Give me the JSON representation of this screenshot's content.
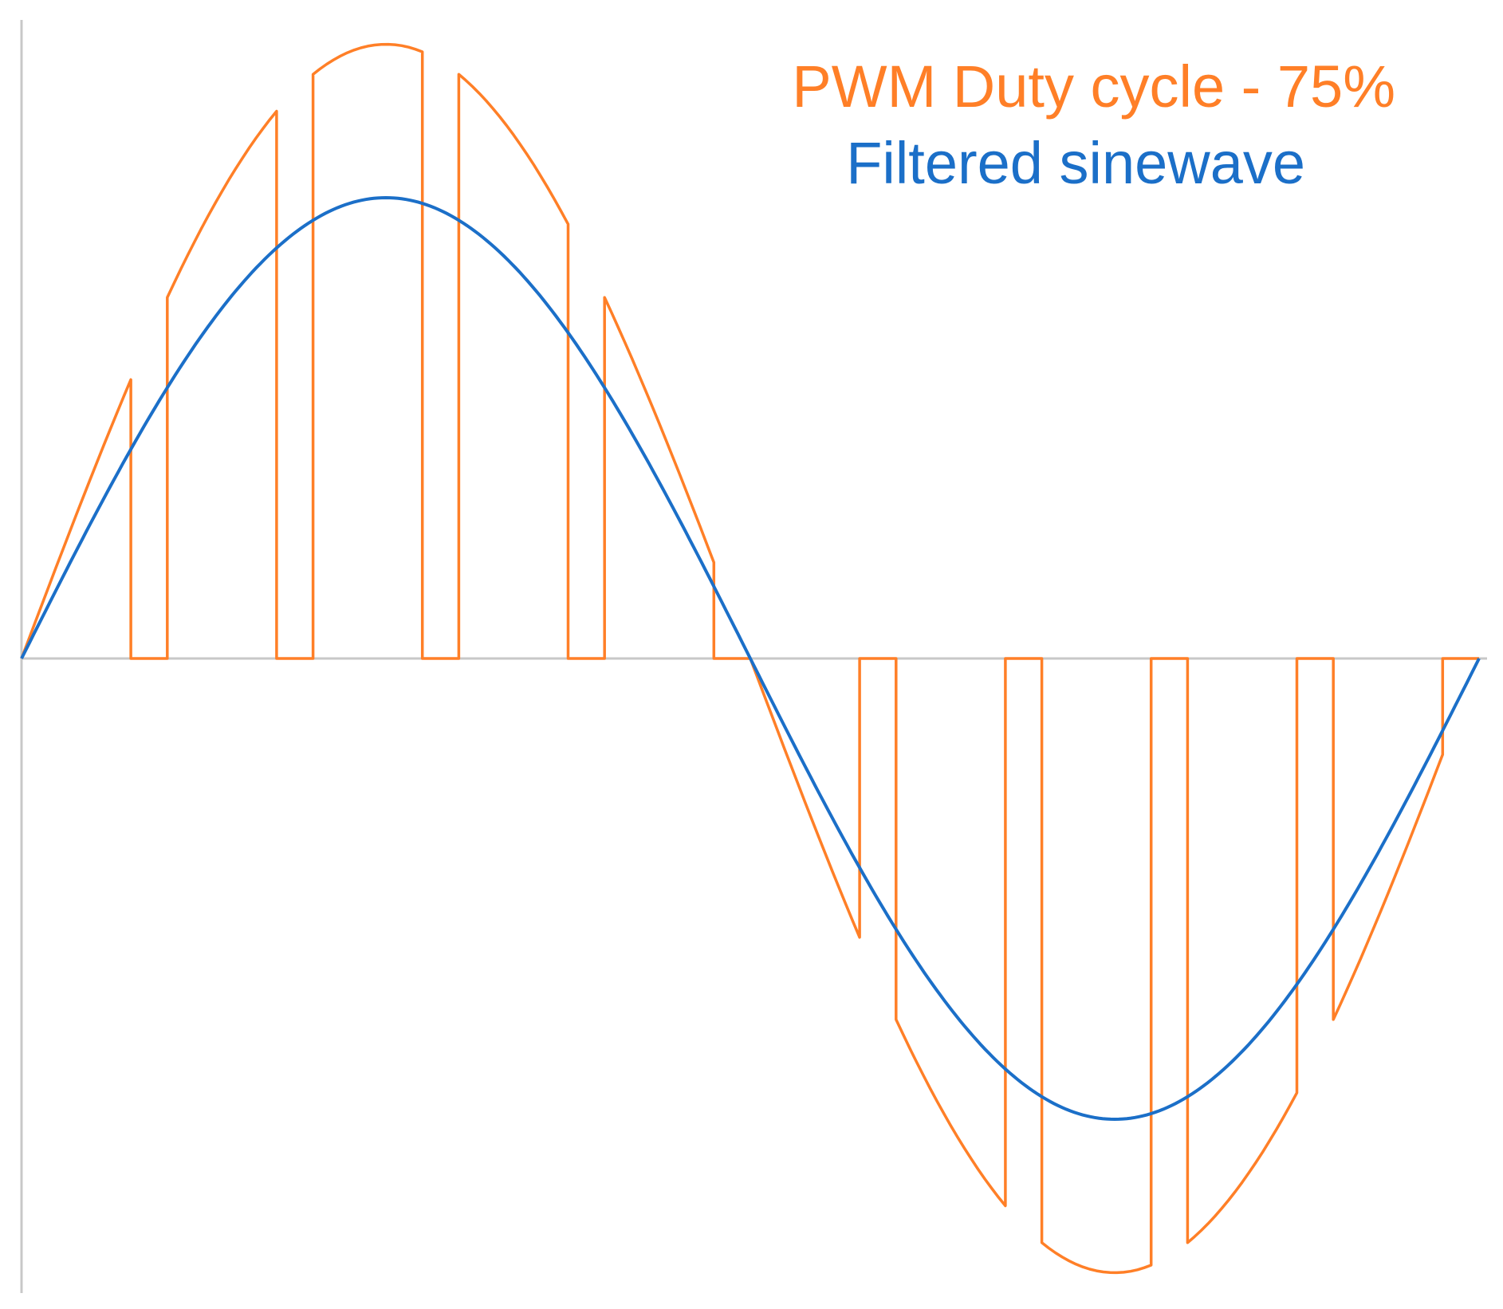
{
  "chart_data": {
    "type": "line",
    "title": "",
    "xlabel": "",
    "ylabel": "",
    "grid": false,
    "legend_position": "top-right",
    "x_range": [
      0,
      360
    ],
    "y_range": [
      -1.3,
      1.3
    ],
    "legend": [
      {
        "label": "PWM Duty cycle - 75%",
        "series": "pwm"
      },
      {
        "label": "Filtered sinewave",
        "series": "sine"
      }
    ],
    "series": [
      {
        "key": "sine",
        "color": "#1b6fc8",
        "x": [
          0,
          15,
          30,
          45,
          60,
          75,
          90,
          105,
          120,
          135,
          150,
          165,
          180,
          195,
          210,
          225,
          240,
          255,
          270,
          285,
          300,
          315,
          330,
          345,
          360
        ],
        "y": [
          0,
          0.259,
          0.5,
          0.707,
          0.866,
          0.966,
          1.0,
          0.966,
          0.866,
          0.707,
          0.5,
          0.259,
          0,
          -0.259,
          -0.5,
          -0.707,
          -0.866,
          -0.966,
          -1.0,
          -0.966,
          -0.866,
          -0.707,
          -0.5,
          -0.259,
          0
        ]
      },
      {
        "key": "pwm",
        "color": "#ff7f27",
        "amplitude": 1.333,
        "pulse_period": 36,
        "duty_cycle": 0.75,
        "pulses": 10
      }
    ]
  },
  "legend_colors": {
    "pwm": "#ff7f27",
    "sine": "#1b6fc8",
    "axis": "#c8c8c8"
  }
}
